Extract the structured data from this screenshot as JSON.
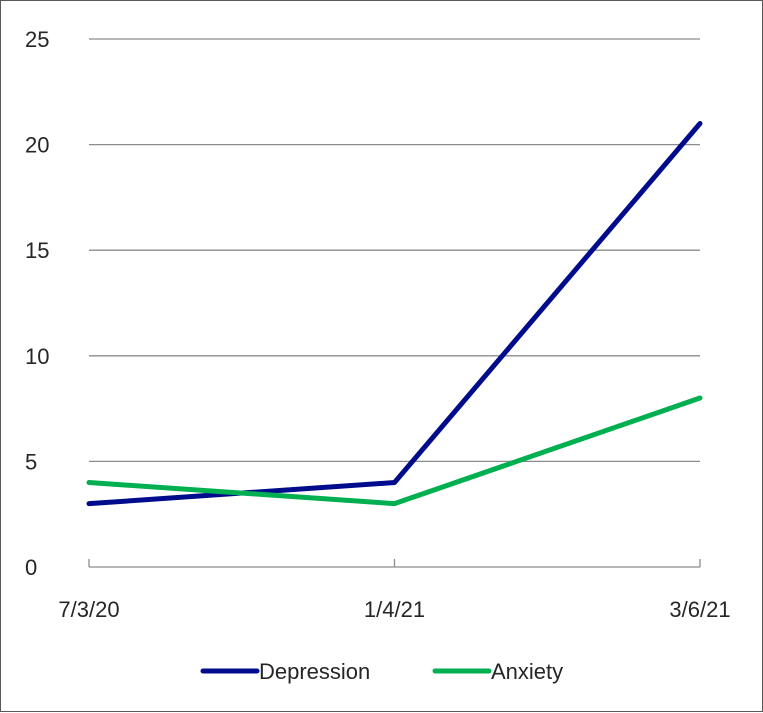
{
  "chart_data": {
    "type": "line",
    "categories": [
      "7/3/20",
      "1/4/21",
      "3/6/21"
    ],
    "series": [
      {
        "name": "Depression",
        "values": [
          3,
          4,
          21
        ],
        "color": "#000C8C"
      },
      {
        "name": "Anxiety",
        "values": [
          4,
          3,
          8
        ],
        "color": "#00B050"
      }
    ],
    "ylim": [
      0,
      25
    ],
    "yticks": [
      0,
      5,
      10,
      15,
      20,
      25
    ],
    "grid": true,
    "legend_position": "bottom"
  }
}
